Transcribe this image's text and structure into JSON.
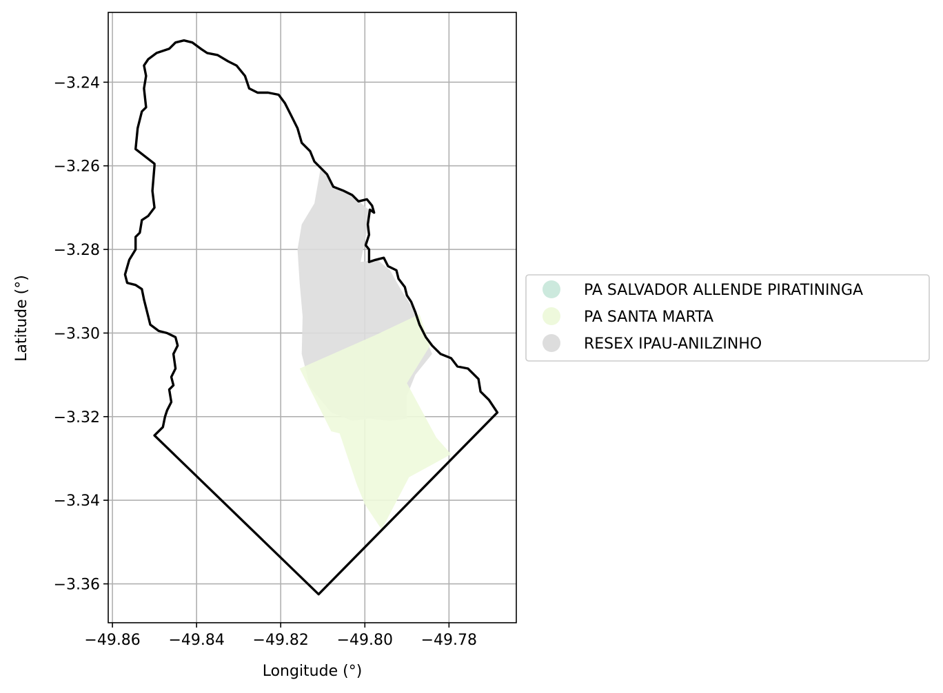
{
  "chart_data": {
    "type": "map",
    "xlabel": "Longitude (°)",
    "ylabel": "Latitude (°)",
    "xlim": [
      -49.861,
      -49.764
    ],
    "ylim": [
      -3.3693,
      -3.2233
    ],
    "grid": true,
    "x_ticks": [
      -49.86,
      -49.84,
      -49.82,
      -49.8,
      -49.78
    ],
    "x_tick_labels": [
      "−49.86",
      "−49.84",
      "−49.82",
      "−49.80",
      "−49.78"
    ],
    "y_ticks": [
      -3.24,
      -3.26,
      -3.28,
      -3.3,
      -3.32,
      -3.34,
      -3.36
    ],
    "y_tick_labels": [
      "−3.24",
      "−3.26",
      "−3.28",
      "−3.30",
      "−3.32",
      "−3.34",
      "−3.36"
    ],
    "legend": {
      "placement": "center-right outside",
      "entries": [
        {
          "label": "PA SALVADOR ALLENDE PIRATININGA",
          "color": "#cce9dd"
        },
        {
          "label": "PA SANTA MARTA",
          "color": "#eef9dc"
        },
        {
          "label": "RESEX IPAU-ANILZINHO",
          "color": "#dddddd"
        }
      ]
    },
    "regions": [
      {
        "name": "RESEX IPAU-ANILZINHO",
        "color": "#dddddd",
        "coords": [
          [
            -49.8105,
            -3.2605
          ],
          [
            -49.807,
            -3.265
          ],
          [
            -49.802,
            -3.268
          ],
          [
            -49.7985,
            -3.271
          ],
          [
            -49.8,
            -3.278
          ],
          [
            -49.801,
            -3.283
          ],
          [
            -49.797,
            -3.2825
          ],
          [
            -49.794,
            -3.285
          ],
          [
            -49.7915,
            -3.2895
          ],
          [
            -49.788,
            -3.295
          ],
          [
            -49.7865,
            -3.299
          ],
          [
            -49.784,
            -3.305
          ],
          [
            -49.788,
            -3.31
          ],
          [
            -49.79,
            -3.315
          ],
          [
            -49.79,
            -3.3205
          ],
          [
            -49.794,
            -3.321
          ],
          [
            -49.799,
            -3.3205
          ],
          [
            -49.803,
            -3.321
          ],
          [
            -49.808,
            -3.319
          ],
          [
            -49.813,
            -3.313
          ],
          [
            -49.815,
            -3.305
          ],
          [
            -49.8148,
            -3.296
          ],
          [
            -49.8155,
            -3.288
          ],
          [
            -49.816,
            -3.28
          ],
          [
            -49.815,
            -3.274
          ],
          [
            -49.812,
            -3.269
          ],
          [
            -49.8105,
            -3.2605
          ]
        ]
      },
      {
        "name": "PA SANTA MARTA",
        "color": "#eef9dc",
        "coords": [
          [
            -49.8155,
            -3.3085
          ],
          [
            -49.7975,
            -3.3005
          ],
          [
            -49.787,
            -3.2955
          ],
          [
            -49.7845,
            -3.303
          ],
          [
            -49.79,
            -3.312
          ],
          [
            -49.783,
            -3.325
          ],
          [
            -49.7795,
            -3.329
          ],
          [
            -49.7895,
            -3.3345
          ],
          [
            -49.796,
            -3.347
          ],
          [
            -49.8,
            -3.341
          ],
          [
            -49.802,
            -3.336
          ],
          [
            -49.806,
            -3.324
          ],
          [
            -49.808,
            -3.3235
          ],
          [
            -49.8155,
            -3.3085
          ]
        ]
      }
    ],
    "boundary": {
      "name": "municipality outline",
      "color": "#000000",
      "coords": [
        [
          -49.8105,
          -3.2605
        ],
        [
          -49.809,
          -3.262
        ],
        [
          -49.8075,
          -3.265
        ],
        [
          -49.805,
          -3.266
        ],
        [
          -49.803,
          -3.267
        ],
        [
          -49.8015,
          -3.2685
        ],
        [
          -49.7995,
          -3.268
        ],
        [
          -49.7983,
          -3.2695
        ],
        [
          -49.7978,
          -3.2712
        ],
        [
          -49.7988,
          -3.2705
        ],
        [
          -49.7993,
          -3.274
        ],
        [
          -49.799,
          -3.2765
        ],
        [
          -49.7998,
          -3.279
        ],
        [
          -49.799,
          -3.28
        ],
        [
          -49.799,
          -3.283
        ],
        [
          -49.7975,
          -3.2825
        ],
        [
          -49.7955,
          -3.282
        ],
        [
          -49.7945,
          -3.284
        ],
        [
          -49.7925,
          -3.285
        ],
        [
          -49.792,
          -3.287
        ],
        [
          -49.7905,
          -3.289
        ],
        [
          -49.79,
          -3.291
        ],
        [
          -49.789,
          -3.2925
        ],
        [
          -49.788,
          -3.295
        ],
        [
          -49.787,
          -3.298
        ],
        [
          -49.7855,
          -3.301
        ],
        [
          -49.784,
          -3.303
        ],
        [
          -49.782,
          -3.305
        ],
        [
          -49.7795,
          -3.306
        ],
        [
          -49.778,
          -3.308
        ],
        [
          -49.7755,
          -3.3085
        ],
        [
          -49.773,
          -3.311
        ],
        [
          -49.7725,
          -3.314
        ],
        [
          -49.7705,
          -3.316
        ],
        [
          -49.7685,
          -3.319
        ],
        [
          -49.811,
          -3.3625
        ],
        [
          -49.85,
          -3.3245
        ],
        [
          -49.848,
          -3.3225
        ],
        [
          -49.8475,
          -3.32
        ],
        [
          -49.847,
          -3.3185
        ],
        [
          -49.846,
          -3.3165
        ],
        [
          -49.8465,
          -3.3135
        ],
        [
          -49.8455,
          -3.3125
        ],
        [
          -49.846,
          -3.3105
        ],
        [
          -49.845,
          -3.3085
        ],
        [
          -49.8455,
          -3.305
        ],
        [
          -49.8445,
          -3.303
        ],
        [
          -49.845,
          -3.301
        ],
        [
          -49.847,
          -3.3
        ],
        [
          -49.849,
          -3.2995
        ],
        [
          -49.851,
          -3.298
        ],
        [
          -49.8515,
          -3.296
        ],
        [
          -49.8525,
          -3.292
        ],
        [
          -49.853,
          -3.2895
        ],
        [
          -49.8545,
          -3.2885
        ],
        [
          -49.8565,
          -3.288
        ],
        [
          -49.857,
          -3.286
        ],
        [
          -49.856,
          -3.2825
        ],
        [
          -49.8545,
          -3.28
        ],
        [
          -49.8545,
          -3.277
        ],
        [
          -49.8535,
          -3.276
        ],
        [
          -49.853,
          -3.273
        ],
        [
          -49.8515,
          -3.272
        ],
        [
          -49.85,
          -3.27
        ],
        [
          -49.8505,
          -3.266
        ],
        [
          -49.85,
          -3.26
        ],
        [
          -49.85,
          -3.2595
        ],
        [
          -49.8545,
          -3.256
        ],
        [
          -49.854,
          -3.251
        ],
        [
          -49.853,
          -3.247
        ],
        [
          -49.852,
          -3.246
        ],
        [
          -49.8525,
          -3.2415
        ],
        [
          -49.852,
          -3.2385
        ],
        [
          -49.8525,
          -3.236
        ],
        [
          -49.8515,
          -3.2345
        ],
        [
          -49.8495,
          -3.233
        ],
        [
          -49.8465,
          -3.232
        ],
        [
          -49.845,
          -3.2305
        ],
        [
          -49.843,
          -3.23
        ],
        [
          -49.841,
          -3.2305
        ],
        [
          -49.839,
          -3.232
        ],
        [
          -49.8375,
          -3.233
        ],
        [
          -49.835,
          -3.2335
        ],
        [
          -49.8325,
          -3.235
        ],
        [
          -49.8305,
          -3.236
        ],
        [
          -49.8285,
          -3.2385
        ],
        [
          -49.8275,
          -3.2415
        ],
        [
          -49.8255,
          -3.2425
        ],
        [
          -49.823,
          -3.2425
        ],
        [
          -49.8205,
          -3.243
        ],
        [
          -49.819,
          -3.245
        ],
        [
          -49.8175,
          -3.248
        ],
        [
          -49.816,
          -3.251
        ],
        [
          -49.815,
          -3.2545
        ],
        [
          -49.813,
          -3.2565
        ],
        [
          -49.812,
          -3.259
        ],
        [
          -49.8105,
          -3.2605
        ]
      ]
    }
  }
}
